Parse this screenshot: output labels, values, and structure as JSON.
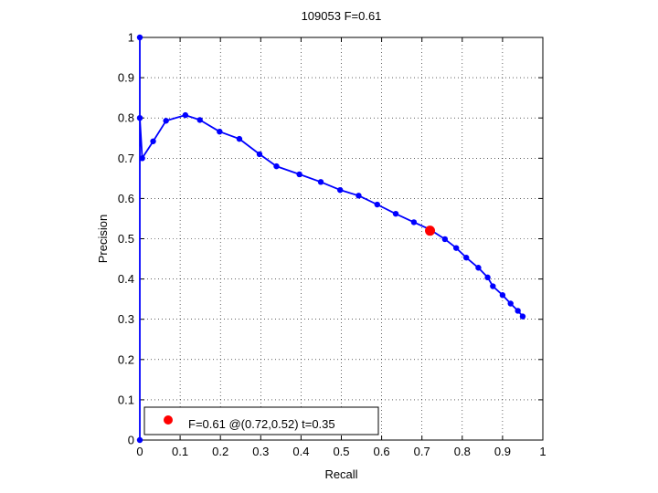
{
  "chart_data": {
    "type": "line",
    "title": "109053 F=0.61",
    "xlabel": "Recall",
    "ylabel": "Precision",
    "xlim": [
      0,
      1
    ],
    "ylim": [
      0,
      1
    ],
    "xticks": [
      "0",
      "0.1",
      "0.2",
      "0.3",
      "0.4",
      "0.5",
      "0.6",
      "0.7",
      "0.8",
      "0.9",
      "1"
    ],
    "yticks": [
      "0",
      "0.1",
      "0.2",
      "0.3",
      "0.4",
      "0.5",
      "0.6",
      "0.7",
      "0.8",
      "0.9",
      "1"
    ],
    "grid": true,
    "legend_position": "bottom-left",
    "series": [
      {
        "color": "#0000ff",
        "x": [
          0,
          0,
          0,
          0.006,
          0.033,
          0.065,
          0.113,
          0.149,
          0.198,
          0.247,
          0.297,
          0.339,
          0.396,
          0.449,
          0.497,
          0.543,
          0.589,
          0.635,
          0.68,
          0.718,
          0.757,
          0.785,
          0.81,
          0.84,
          0.863,
          0.876,
          0.9,
          0.92,
          0.938,
          0.95
        ],
        "y": [
          0,
          1,
          0.8,
          0.7,
          0.742,
          0.793,
          0.807,
          0.795,
          0.766,
          0.748,
          0.71,
          0.68,
          0.66,
          0.641,
          0.621,
          0.607,
          0.585,
          0.562,
          0.541,
          0.524,
          0.499,
          0.477,
          0.453,
          0.428,
          0.404,
          0.382,
          0.36,
          0.339,
          0.321,
          0.307
        ]
      }
    ],
    "best_point": {
      "x": 0.72,
      "y": 0.52,
      "color": "#ff0000"
    },
    "legend": [
      {
        "label": "F=0.61 @(0.72,0.52) t=0.35",
        "color": "#ff0000"
      }
    ]
  }
}
